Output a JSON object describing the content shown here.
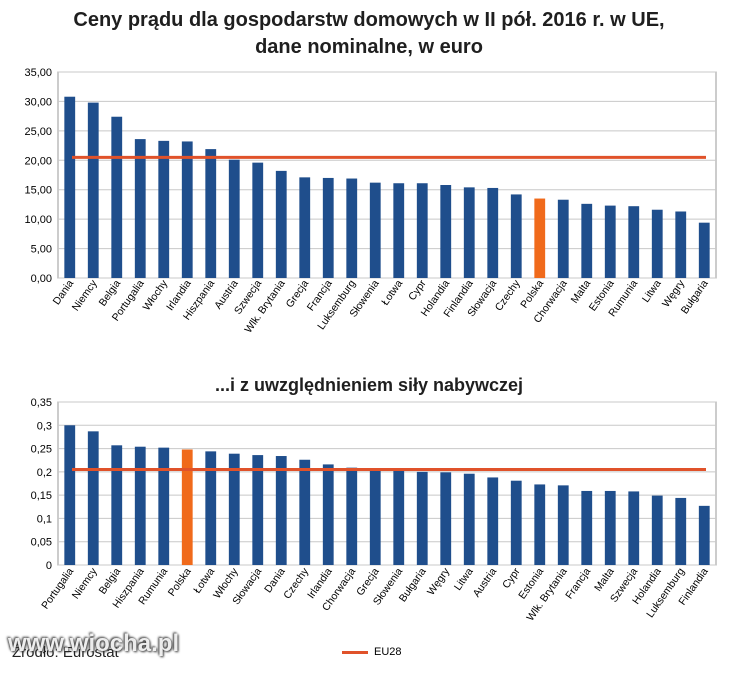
{
  "colors": {
    "bar": "#1f4e8c",
    "highlight": "#f06a1b",
    "eu_line": "#e0522a",
    "grid": "#c8c8c8",
    "frame": "#9a9a9a"
  },
  "chart_data": [
    {
      "type": "bar",
      "title": "Ceny prądu dla gospodarstw domowych w II pół. 2016 r. w UE, dane nominalne, w euro",
      "title_lines": [
        "Ceny prądu dla gospodarstw domowych w II pół. 2016 r. w UE,",
        "dane nominalne, w euro"
      ],
      "categories": [
        "Dania",
        "Niemcy",
        "Belgia",
        "Portugalia",
        "Włochy",
        "Irlandia",
        "Hiszpania",
        "Austria",
        "Szwecja",
        "Wlk. Brytania",
        "Grecja",
        "Francja",
        "Luksemburg",
        "Słowenia",
        "Łotwa",
        "Cypr",
        "Holandia",
        "Finlandia",
        "Słowacja",
        "Czechy",
        "Polska",
        "Chorwacja",
        "Malta",
        "Estonia",
        "Rumunia",
        "Litwa",
        "Węgry",
        "Bułgaria"
      ],
      "values": [
        30.8,
        29.8,
        27.4,
        23.6,
        23.3,
        23.2,
        21.9,
        20.1,
        19.6,
        18.2,
        17.1,
        17.0,
        16.9,
        16.2,
        16.1,
        16.1,
        15.8,
        15.4,
        15.3,
        14.2,
        13.5,
        13.3,
        12.6,
        12.3,
        12.2,
        11.6,
        11.3,
        9.4
      ],
      "highlight": "Polska",
      "reference_line": {
        "name": "EU28",
        "value": 20.5
      },
      "ylim": [
        0,
        35
      ],
      "yticks": [
        "0,00",
        "5,00",
        "10,00",
        "15,00",
        "20,00",
        "25,00",
        "30,00",
        "35,00"
      ],
      "grid": true
    },
    {
      "type": "bar",
      "title": "...i z uwzględnieniem siły nabywczej",
      "title_lines": [
        "...i z uwzględnieniem siły nabywczej"
      ],
      "categories": [
        "Portugalia",
        "Niemcy",
        "Belgia",
        "Hiszpania",
        "Rumunia",
        "Polska",
        "Łotwa",
        "Włochy",
        "Słowacja",
        "Dania",
        "Czechy",
        "Irlandia",
        "Chorwacja",
        "Grecja",
        "Słowenia",
        "Bułgaria",
        "Węgry",
        "Litwa",
        "Austria",
        "Cypr",
        "Estonia",
        "Wlk. Brytania",
        "Francja",
        "Malta",
        "Szwecja",
        "Holandia",
        "Luksemburg",
        "Finlandia"
      ],
      "values": [
        0.3,
        0.287,
        0.257,
        0.254,
        0.252,
        0.248,
        0.244,
        0.239,
        0.236,
        0.234,
        0.226,
        0.216,
        0.209,
        0.204,
        0.203,
        0.2,
        0.199,
        0.196,
        0.188,
        0.181,
        0.173,
        0.171,
        0.159,
        0.159,
        0.158,
        0.149,
        0.144,
        0.127
      ],
      "highlight": "Polska",
      "reference_line": {
        "name": "EU28",
        "value": 0.205
      },
      "ylim": [
        0,
        0.35
      ],
      "yticks": [
        "0",
        "0,05",
        "0,1",
        "0,15",
        "0,2",
        "0,25",
        "0,3",
        "0,35"
      ],
      "grid": true,
      "legend": {
        "label": "EU28",
        "placement": "bottom-center"
      }
    }
  ],
  "footer": {
    "source": "Źródło: Eurostat",
    "watermark": "www.wiocha.pl"
  }
}
